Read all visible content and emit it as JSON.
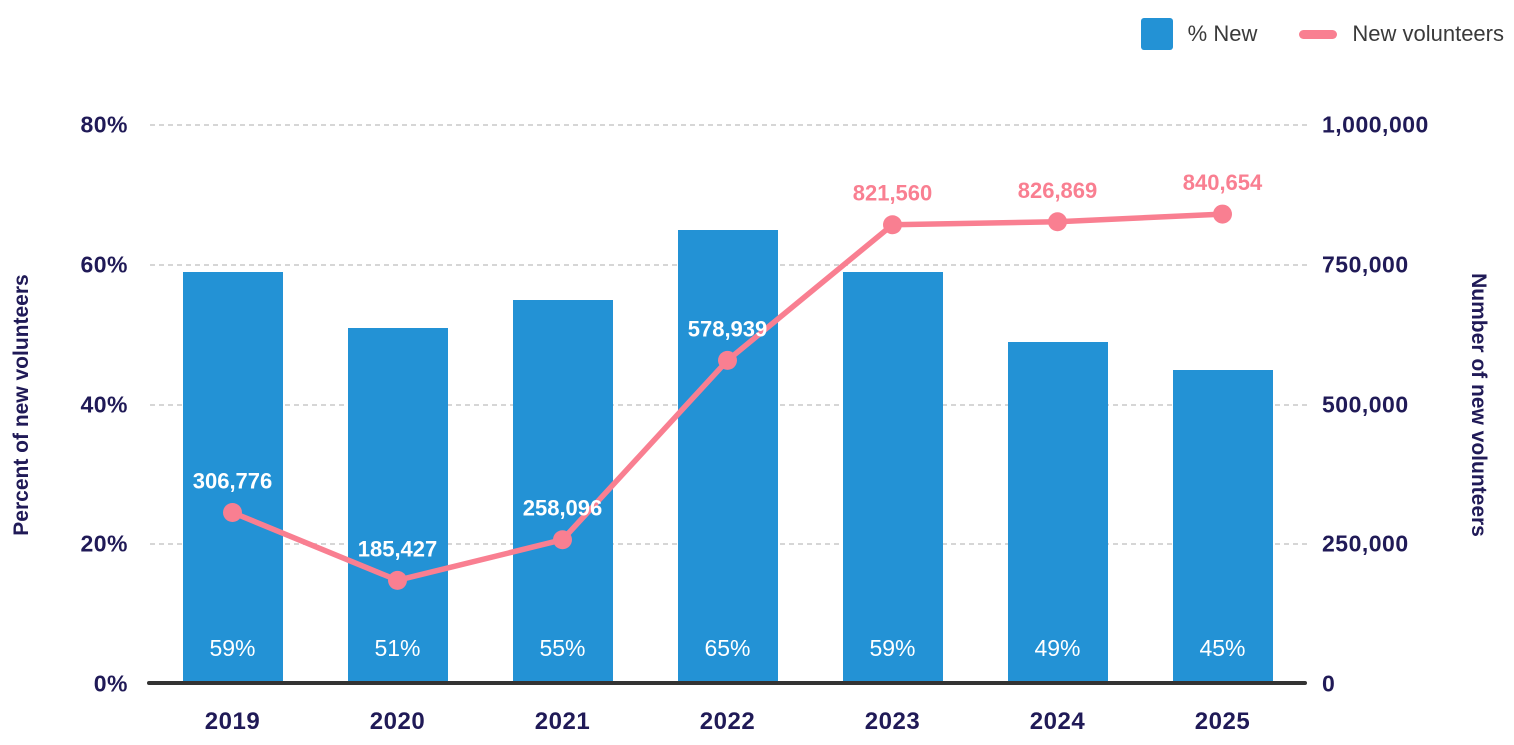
{
  "colors": {
    "bar": "#2392d5",
    "line": "#f97f91",
    "axis_text": "#201a57",
    "legend_text": "#3a3a3a",
    "gridline": "#d6d6d6",
    "baseline": "#333333",
    "bar_value_label": "#ffffff"
  },
  "chart_data": {
    "type": "bar+line",
    "categories": [
      "2019",
      "2020",
      "2021",
      "2022",
      "2023",
      "2024",
      "2025"
    ],
    "series": [
      {
        "name": "% New",
        "type": "bar",
        "axis": "left",
        "values": [
          59,
          51,
          55,
          65,
          59,
          49,
          45
        ],
        "labels": [
          "59%",
          "51%",
          "55%",
          "65%",
          "59%",
          "49%",
          "45%"
        ],
        "color": "#2392d5",
        "label_color": "#ffffff"
      },
      {
        "name": "New volunteers",
        "type": "line",
        "axis": "right",
        "values": [
          306776,
          185427,
          258096,
          578939,
          821560,
          826869,
          840654
        ],
        "labels": [
          "306,776",
          "185,427",
          "258,096",
          "578,939",
          "821,560",
          "826,869",
          "840,654"
        ],
        "color": "#f97f91"
      }
    ],
    "left_axis": {
      "title": "Percent of new volunteers",
      "range": [
        0,
        80
      ],
      "ticks": [
        {
          "value": 80,
          "label": "80%"
        },
        {
          "value": 60,
          "label": "60%"
        },
        {
          "value": 40,
          "label": "40%"
        },
        {
          "value": 20,
          "label": "20%"
        },
        {
          "value": 0,
          "label": "0%"
        }
      ]
    },
    "right_axis": {
      "title": "Number of new volunteers",
      "range": [
        0,
        1000000
      ],
      "ticks": [
        {
          "value": 1000000,
          "label": "1,000,000"
        },
        {
          "value": 750000,
          "label": "750,000"
        },
        {
          "value": 500000,
          "label": "500,000"
        },
        {
          "value": 250000,
          "label": "250,000"
        },
        {
          "value": 0,
          "label": "0"
        }
      ]
    },
    "grid": true,
    "legend_position": "top-right"
  }
}
